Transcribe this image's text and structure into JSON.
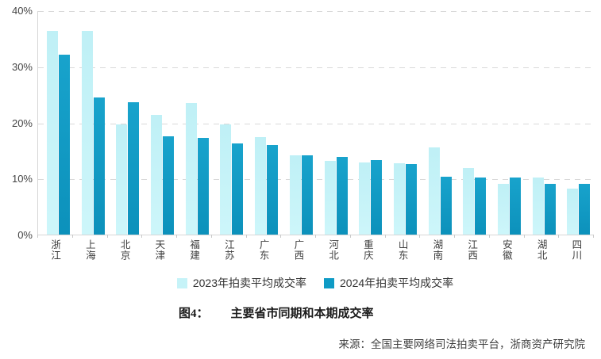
{
  "chart_data": {
    "type": "bar",
    "title": "",
    "categories": [
      "浙江",
      "上海",
      "北京",
      "天津",
      "福建",
      "江苏",
      "广东",
      "广西",
      "河北",
      "重庆",
      "山东",
      "湖南",
      "江西",
      "安徽",
      "湖北",
      "四川"
    ],
    "series": [
      {
        "name": "2023年拍卖平均成交率",
        "color": "#c6f3f8",
        "values": [
          36.4,
          36.4,
          19.6,
          21.4,
          23.5,
          19.6,
          17.4,
          14.1,
          13.1,
          12.8,
          12.7,
          15.5,
          11.9,
          9.1,
          10.2,
          8.2
        ]
      },
      {
        "name": "2024年拍卖平均成交率",
        "color": "#0f9bc5",
        "values": [
          32.1,
          24.5,
          23.6,
          17.5,
          17.2,
          16.2,
          16.0,
          14.2,
          13.8,
          13.3,
          12.6,
          10.3,
          10.2,
          10.2,
          9.0,
          9.0
        ]
      }
    ],
    "xlabel": "",
    "ylabel": "",
    "ylim": [
      0,
      40
    ],
    "yticks_top_to_bottom": [
      "40%",
      "30%",
      "20%",
      "10%",
      "0%"
    ],
    "grid": "horizontal-dashed",
    "gridline_color": "#d9d9d9",
    "legend_position": "bottom"
  },
  "caption": {
    "label": "图4：",
    "text": "主要省市同期和本期成交率"
  },
  "source": {
    "text": "来源：全国主要网络司法拍卖平台，浙商资产研究院"
  }
}
